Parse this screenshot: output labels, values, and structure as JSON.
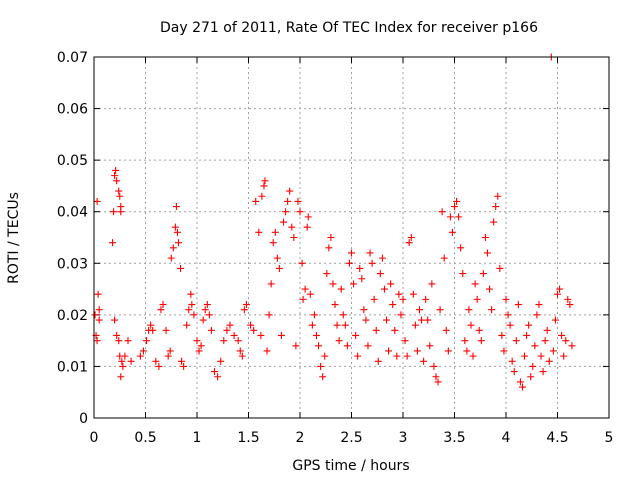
{
  "chart_data": {
    "type": "scatter",
    "title": "Day 271 of 2011, Rate Of TEC Index for receiver p166",
    "xlabel": "GPS time / hours",
    "ylabel": "ROTI / TECUs",
    "xlim": [
      0,
      5
    ],
    "ylim": [
      0,
      0.07
    ],
    "grid": true,
    "marker": "+",
    "series_color": "#ff0000",
    "x_ticks": [
      {
        "value": 0,
        "label": "0"
      },
      {
        "value": 0.5,
        "label": "0.5"
      },
      {
        "value": 1,
        "label": "1"
      },
      {
        "value": 1.5,
        "label": "1.5"
      },
      {
        "value": 2,
        "label": "2"
      },
      {
        "value": 2.5,
        "label": "2.5"
      },
      {
        "value": 3,
        "label": "3"
      },
      {
        "value": 3.5,
        "label": "3.5"
      },
      {
        "value": 4,
        "label": "4"
      },
      {
        "value": 4.5,
        "label": "4.5"
      },
      {
        "value": 5,
        "label": "5"
      }
    ],
    "y_ticks": [
      {
        "value": 0,
        "label": "0"
      },
      {
        "value": 0.01,
        "label": "0.01"
      },
      {
        "value": 0.02,
        "label": "0.02"
      },
      {
        "value": 0.03,
        "label": "0.03"
      },
      {
        "value": 0.04,
        "label": "0.04"
      },
      {
        "value": 0.05,
        "label": "0.05"
      },
      {
        "value": 0.06,
        "label": "0.06"
      },
      {
        "value": 0.07,
        "label": "0.07"
      }
    ],
    "points": [
      [
        0.01,
        0.02
      ],
      [
        0.02,
        0.016
      ],
      [
        0.03,
        0.015
      ],
      [
        0.03,
        0.042
      ],
      [
        0.04,
        0.024
      ],
      [
        0.05,
        0.021
      ],
      [
        0.05,
        0.019
      ],
      [
        0.18,
        0.034
      ],
      [
        0.19,
        0.04
      ],
      [
        0.2,
        0.047
      ],
      [
        0.21,
        0.048
      ],
      [
        0.22,
        0.046
      ],
      [
        0.2,
        0.019
      ],
      [
        0.22,
        0.016
      ],
      [
        0.24,
        0.044
      ],
      [
        0.25,
        0.043
      ],
      [
        0.26,
        0.041
      ],
      [
        0.26,
        0.04
      ],
      [
        0.24,
        0.015
      ],
      [
        0.25,
        0.012
      ],
      [
        0.26,
        0.008
      ],
      [
        0.27,
        0.011
      ],
      [
        0.28,
        0.01
      ],
      [
        0.3,
        0.012
      ],
      [
        0.33,
        0.015
      ],
      [
        0.36,
        0.011
      ],
      [
        0.45,
        0.012
      ],
      [
        0.48,
        0.013
      ],
      [
        0.51,
        0.015
      ],
      [
        0.53,
        0.017
      ],
      [
        0.55,
        0.018
      ],
      [
        0.57,
        0.017
      ],
      [
        0.6,
        0.011
      ],
      [
        0.63,
        0.01
      ],
      [
        0.65,
        0.021
      ],
      [
        0.67,
        0.022
      ],
      [
        0.7,
        0.017
      ],
      [
        0.72,
        0.012
      ],
      [
        0.74,
        0.013
      ],
      [
        0.75,
        0.031
      ],
      [
        0.77,
        0.033
      ],
      [
        0.79,
        0.037
      ],
      [
        0.8,
        0.041
      ],
      [
        0.81,
        0.036
      ],
      [
        0.82,
        0.034
      ],
      [
        0.84,
        0.029
      ],
      [
        0.85,
        0.011
      ],
      [
        0.87,
        0.01
      ],
      [
        0.9,
        0.018
      ],
      [
        0.92,
        0.021
      ],
      [
        0.94,
        0.024
      ],
      [
        0.95,
        0.022
      ],
      [
        0.97,
        0.02
      ],
      [
        1.0,
        0.015
      ],
      [
        1.02,
        0.013
      ],
      [
        1.04,
        0.014
      ],
      [
        1.06,
        0.019
      ],
      [
        1.08,
        0.021
      ],
      [
        1.1,
        0.022
      ],
      [
        1.12,
        0.02
      ],
      [
        1.14,
        0.017
      ],
      [
        1.17,
        0.009
      ],
      [
        1.2,
        0.008
      ],
      [
        1.23,
        0.011
      ],
      [
        1.26,
        0.015
      ],
      [
        1.29,
        0.017
      ],
      [
        1.32,
        0.018
      ],
      [
        1.36,
        0.016
      ],
      [
        1.4,
        0.015
      ],
      [
        1.42,
        0.013
      ],
      [
        1.44,
        0.012
      ],
      [
        1.46,
        0.021
      ],
      [
        1.48,
        0.022
      ],
      [
        1.52,
        0.018
      ],
      [
        1.55,
        0.017
      ],
      [
        1.57,
        0.042
      ],
      [
        1.6,
        0.036
      ],
      [
        1.63,
        0.043
      ],
      [
        1.65,
        0.045
      ],
      [
        1.66,
        0.046
      ],
      [
        1.62,
        0.016
      ],
      [
        1.68,
        0.013
      ],
      [
        1.7,
        0.02
      ],
      [
        1.72,
        0.026
      ],
      [
        1.74,
        0.034
      ],
      [
        1.76,
        0.036
      ],
      [
        1.78,
        0.031
      ],
      [
        1.8,
        0.029
      ],
      [
        1.82,
        0.016
      ],
      [
        1.84,
        0.038
      ],
      [
        1.86,
        0.04
      ],
      [
        1.88,
        0.042
      ],
      [
        1.9,
        0.044
      ],
      [
        1.92,
        0.037
      ],
      [
        1.94,
        0.035
      ],
      [
        1.96,
        0.014
      ],
      [
        1.98,
        0.042
      ],
      [
        2.0,
        0.04
      ],
      [
        2.02,
        0.03
      ],
      [
        2.03,
        0.023
      ],
      [
        2.05,
        0.025
      ],
      [
        2.07,
        0.037
      ],
      [
        2.08,
        0.039
      ],
      [
        2.1,
        0.024
      ],
      [
        2.12,
        0.018
      ],
      [
        2.14,
        0.02
      ],
      [
        2.16,
        0.016
      ],
      [
        2.18,
        0.014
      ],
      [
        2.2,
        0.01
      ],
      [
        2.22,
        0.008
      ],
      [
        2.24,
        0.012
      ],
      [
        2.26,
        0.028
      ],
      [
        2.28,
        0.033
      ],
      [
        2.3,
        0.035
      ],
      [
        2.32,
        0.026
      ],
      [
        2.34,
        0.022
      ],
      [
        2.36,
        0.018
      ],
      [
        2.38,
        0.015
      ],
      [
        2.4,
        0.025
      ],
      [
        2.42,
        0.02
      ],
      [
        2.44,
        0.018
      ],
      [
        2.46,
        0.014
      ],
      [
        2.48,
        0.03
      ],
      [
        2.5,
        0.032
      ],
      [
        2.52,
        0.026
      ],
      [
        2.54,
        0.016
      ],
      [
        2.56,
        0.012
      ],
      [
        2.58,
        0.029
      ],
      [
        2.6,
        0.027
      ],
      [
        2.62,
        0.021
      ],
      [
        2.64,
        0.019
      ],
      [
        2.66,
        0.014
      ],
      [
        2.68,
        0.032
      ],
      [
        2.7,
        0.03
      ],
      [
        2.72,
        0.023
      ],
      [
        2.74,
        0.017
      ],
      [
        2.76,
        0.011
      ],
      [
        2.78,
        0.028
      ],
      [
        2.8,
        0.031
      ],
      [
        2.82,
        0.025
      ],
      [
        2.84,
        0.019
      ],
      [
        2.86,
        0.013
      ],
      [
        2.88,
        0.026
      ],
      [
        2.9,
        0.022
      ],
      [
        2.92,
        0.017
      ],
      [
        2.94,
        0.012
      ],
      [
        2.96,
        0.024
      ],
      [
        2.98,
        0.02
      ],
      [
        3.0,
        0.023
      ],
      [
        3.02,
        0.015
      ],
      [
        3.04,
        0.012
      ],
      [
        3.06,
        0.034
      ],
      [
        3.08,
        0.035
      ],
      [
        3.1,
        0.024
      ],
      [
        3.12,
        0.018
      ],
      [
        3.14,
        0.013
      ],
      [
        3.16,
        0.021
      ],
      [
        3.18,
        0.019
      ],
      [
        3.2,
        0.011
      ],
      [
        3.22,
        0.023
      ],
      [
        3.24,
        0.019
      ],
      [
        3.26,
        0.014
      ],
      [
        3.28,
        0.026
      ],
      [
        3.3,
        0.01
      ],
      [
        3.32,
        0.008
      ],
      [
        3.34,
        0.007
      ],
      [
        3.36,
        0.021
      ],
      [
        3.38,
        0.04
      ],
      [
        3.4,
        0.031
      ],
      [
        3.42,
        0.017
      ],
      [
        3.44,
        0.013
      ],
      [
        3.46,
        0.039
      ],
      [
        3.48,
        0.036
      ],
      [
        3.5,
        0.041
      ],
      [
        3.52,
        0.042
      ],
      [
        3.54,
        0.039
      ],
      [
        3.56,
        0.033
      ],
      [
        3.58,
        0.028
      ],
      [
        3.6,
        0.015
      ],
      [
        3.62,
        0.013
      ],
      [
        3.64,
        0.021
      ],
      [
        3.66,
        0.018
      ],
      [
        3.68,
        0.012
      ],
      [
        3.7,
        0.026
      ],
      [
        3.72,
        0.023
      ],
      [
        3.74,
        0.017
      ],
      [
        3.76,
        0.015
      ],
      [
        3.78,
        0.028
      ],
      [
        3.8,
        0.035
      ],
      [
        3.82,
        0.032
      ],
      [
        3.84,
        0.025
      ],
      [
        3.86,
        0.021
      ],
      [
        3.88,
        0.038
      ],
      [
        3.9,
        0.041
      ],
      [
        3.92,
        0.043
      ],
      [
        3.94,
        0.029
      ],
      [
        3.96,
        0.016
      ],
      [
        3.98,
        0.013
      ],
      [
        4.0,
        0.023
      ],
      [
        4.02,
        0.02
      ],
      [
        4.04,
        0.018
      ],
      [
        4.06,
        0.011
      ],
      [
        4.08,
        0.009
      ],
      [
        4.1,
        0.015
      ],
      [
        4.12,
        0.022
      ],
      [
        4.14,
        0.007
      ],
      [
        4.16,
        0.006
      ],
      [
        4.18,
        0.012
      ],
      [
        4.2,
        0.016
      ],
      [
        4.22,
        0.018
      ],
      [
        4.24,
        0.008
      ],
      [
        4.26,
        0.01
      ],
      [
        4.28,
        0.014
      ],
      [
        4.3,
        0.02
      ],
      [
        4.32,
        0.022
      ],
      [
        4.34,
        0.012
      ],
      [
        4.36,
        0.009
      ],
      [
        4.38,
        0.015
      ],
      [
        4.4,
        0.017
      ],
      [
        4.42,
        0.011
      ],
      [
        4.44,
        0.07
      ],
      [
        4.46,
        0.013
      ],
      [
        4.48,
        0.019
      ],
      [
        4.5,
        0.024
      ],
      [
        4.52,
        0.025
      ],
      [
        4.54,
        0.016
      ],
      [
        4.56,
        0.012
      ],
      [
        4.58,
        0.015
      ],
      [
        4.6,
        0.023
      ],
      [
        4.62,
        0.022
      ],
      [
        4.64,
        0.014
      ]
    ]
  }
}
